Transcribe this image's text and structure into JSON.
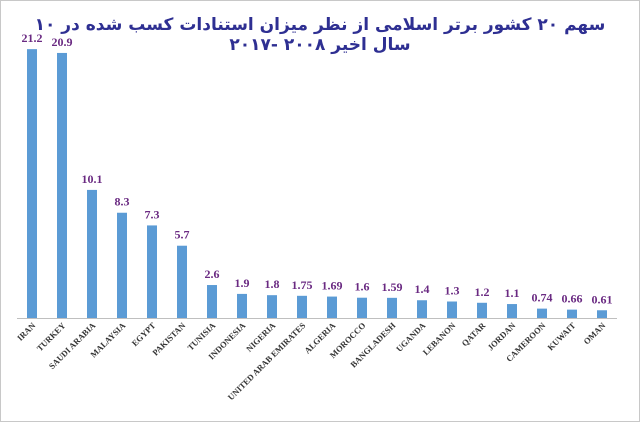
{
  "chart_data": {
    "type": "bar",
    "title": "سهم ۲۰ کشور برتر اسلامی از نظر میزان استنادات کسب شده در ۱۰ سال اخیر ۲۰۰۸ -۲۰۱۷",
    "categories": [
      "IRAN",
      "TURKEY",
      "SAUDI ARABIA",
      "MALAYSIA",
      "EGYPT",
      "PAKISTAN",
      "TUNISIA",
      "INDONESIA",
      "NIGERIA",
      "UNITED ARAB EMIRATES",
      "ALGERIA",
      "MOROCCO",
      "BANGLADESH",
      "UGANDA",
      "LEBANON",
      "QATAR",
      "JORDAN",
      "CAMEROON",
      "KUWAIT",
      "OMAN"
    ],
    "values": [
      21.2,
      20.9,
      10.1,
      8.3,
      7.3,
      5.7,
      2.6,
      1.9,
      1.8,
      1.75,
      1.69,
      1.6,
      1.59,
      1.4,
      1.3,
      1.2,
      1.1,
      0.74,
      0.66,
      0.61
    ],
    "value_labels": [
      "21.2",
      "20.9",
      "10.1",
      "8.3",
      "7.3",
      "5.7",
      "2.6",
      "1.9",
      "1.8",
      "1.75",
      "1.69",
      "1.6",
      "1.59",
      "1.4",
      "1.3",
      "1.2",
      "1.1",
      "0.74",
      "0.66",
      "0.61"
    ],
    "ylim": [
      0,
      22
    ],
    "grid": false,
    "legend": "none",
    "colors": {
      "bar": "#5b9bd5",
      "value_label": "#6a2a82",
      "title": "#2e2f92",
      "axis": "#bfbfbf"
    }
  }
}
